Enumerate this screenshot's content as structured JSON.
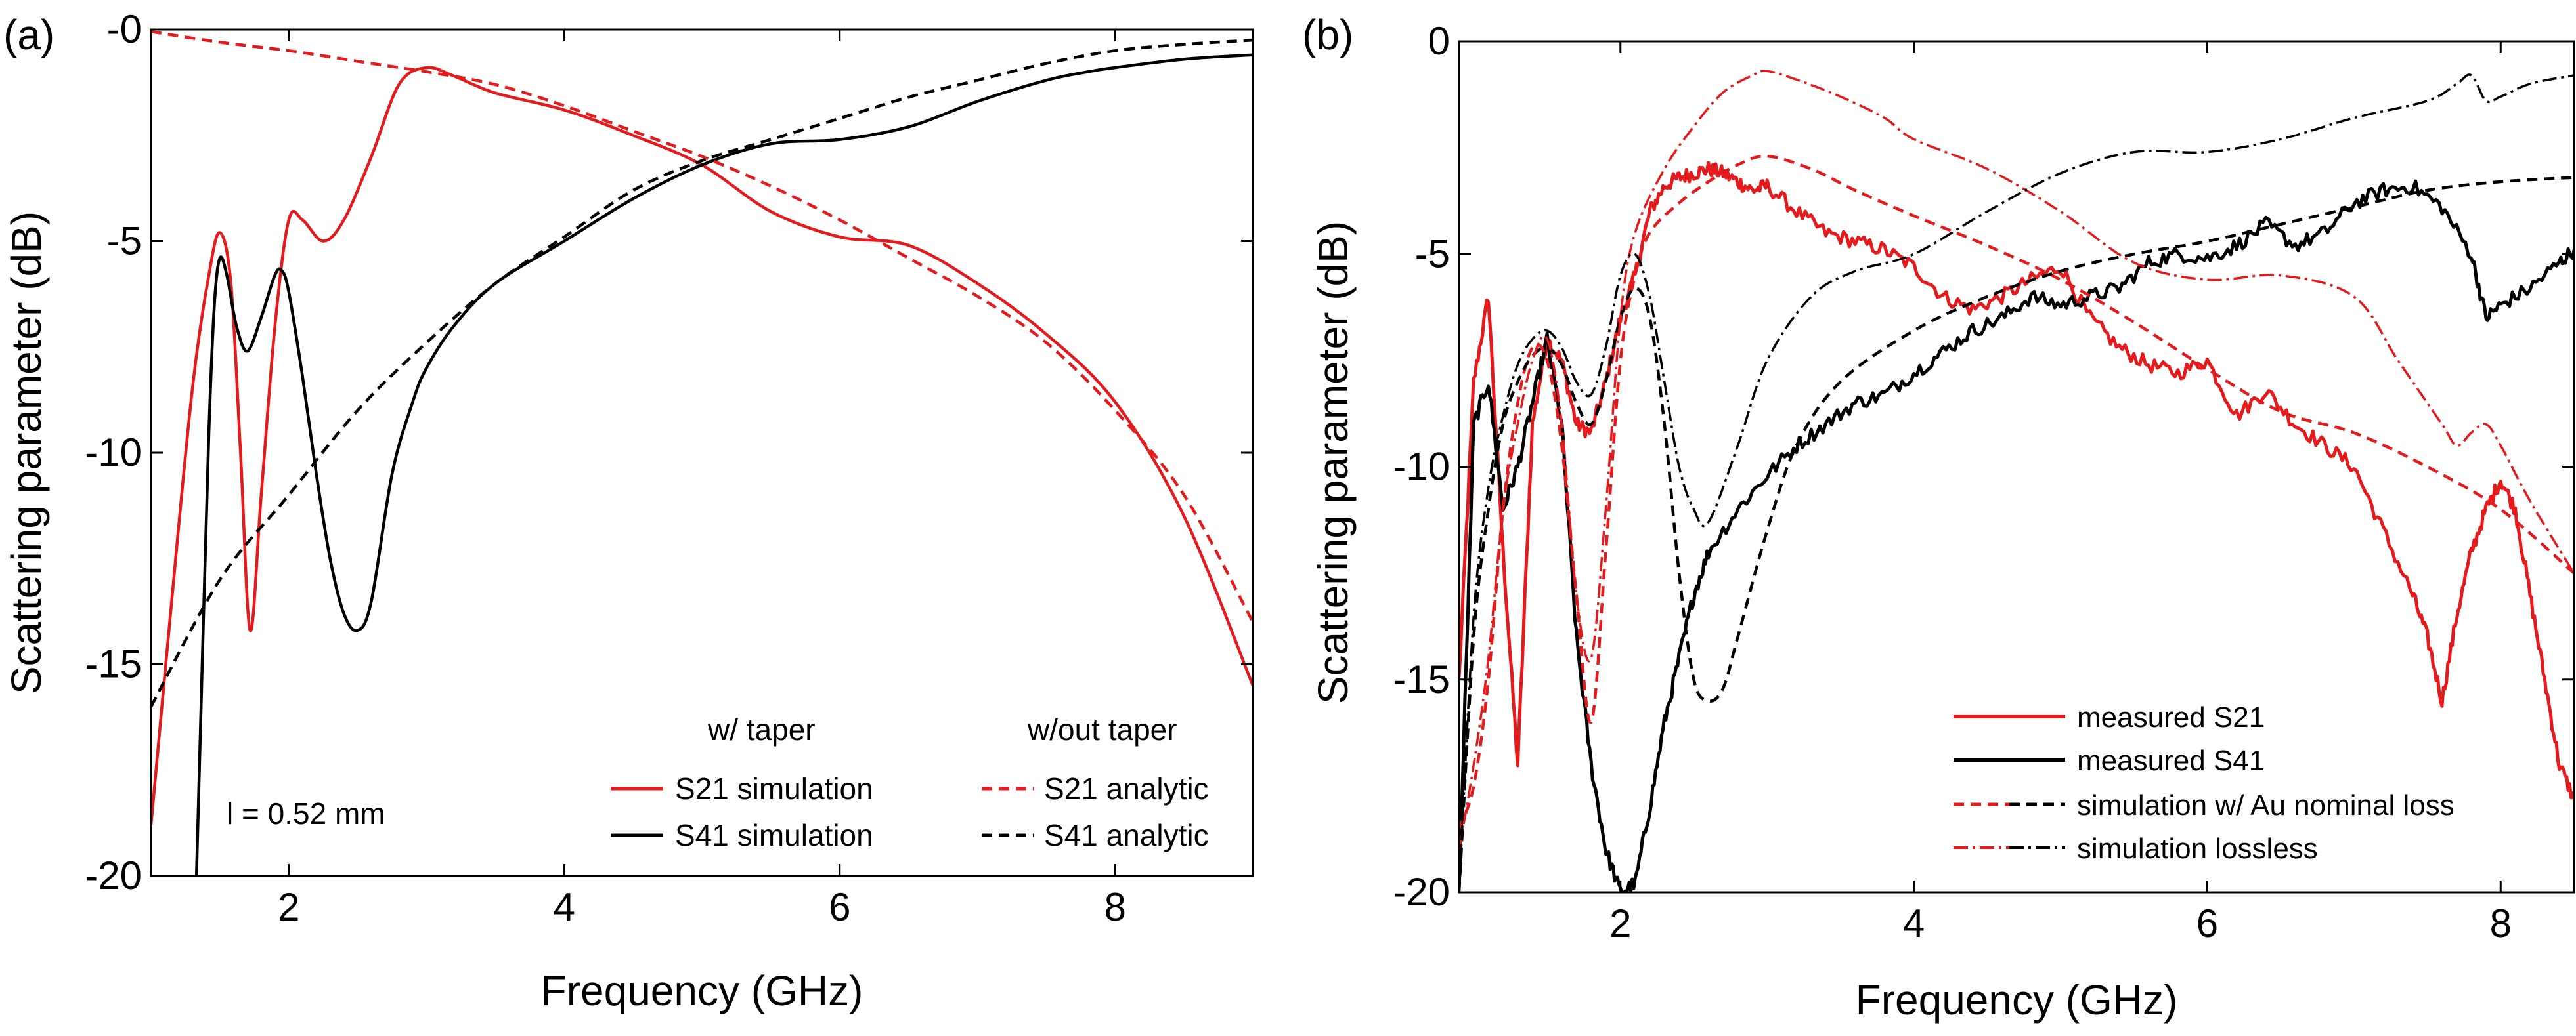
{
  "chart_data": [
    {
      "panel": "(a)",
      "type": "line",
      "xlabel": "Frequency (GHz)",
      "ylabel": "Scattering parameter (dB)",
      "xlim": [
        1,
        9
      ],
      "ylim": [
        -20,
        0
      ],
      "xticks": [
        2,
        4,
        6,
        8
      ],
      "yticks": [
        0,
        -5,
        -10,
        -15,
        -20
      ],
      "xtick_labels": [
        "2",
        "4",
        "6",
        "8"
      ],
      "ytick_labels": [
        "-0",
        "-5",
        "-10",
        "-15",
        "-20"
      ],
      "legend_headers": [
        "w/ taper",
        "w/out taper"
      ],
      "annotation": "l = 0.52 mm",
      "series": [
        {
          "name": "S21 simulation",
          "color": "#e41a1c",
          "style": "solid",
          "x": [
            1.0,
            1.15,
            1.3,
            1.42,
            1.5,
            1.58,
            1.65,
            1.72,
            1.8,
            1.9,
            2.0,
            2.1,
            2.25,
            2.4,
            2.6,
            2.8,
            3.0,
            3.2,
            3.5,
            4.0,
            4.5,
            5.0,
            5.5,
            6.0,
            6.5,
            7.0,
            7.5,
            8.0,
            8.5,
            9.0
          ],
          "y": [
            -18.8,
            -13.5,
            -8.5,
            -5.8,
            -4.8,
            -6.0,
            -10.0,
            -14.2,
            -11.0,
            -7.0,
            -4.5,
            -4.5,
            -5.0,
            -4.5,
            -3.0,
            -1.3,
            -0.9,
            -1.1,
            -1.5,
            -1.9,
            -2.5,
            -3.2,
            -4.3,
            -4.9,
            -5.1,
            -6.0,
            -7.2,
            -8.8,
            -11.5,
            -15.5
          ]
        },
        {
          "name": "S41 simulation",
          "color": "#000000",
          "style": "solid",
          "x": [
            1.33,
            1.38,
            1.42,
            1.46,
            1.5,
            1.55,
            1.62,
            1.7,
            1.8,
            1.9,
            1.95,
            2.0,
            2.1,
            2.2,
            2.3,
            2.4,
            2.5,
            2.6,
            2.75,
            2.9,
            3.0,
            3.2,
            3.5,
            4.0,
            4.5,
            5.0,
            5.5,
            6.0,
            6.5,
            7.0,
            7.5,
            7.8,
            8.0,
            8.5,
            9.0
          ],
          "y": [
            -20,
            -14,
            -9.5,
            -6.5,
            -5.4,
            -5.8,
            -7.0,
            -7.6,
            -6.8,
            -5.8,
            -5.7,
            -6.2,
            -8.2,
            -10.5,
            -12.5,
            -13.8,
            -14.2,
            -13.5,
            -10.5,
            -8.8,
            -8.0,
            -7.0,
            -6.0,
            -5.0,
            -4.0,
            -3.2,
            -2.7,
            -2.6,
            -2.3,
            -1.7,
            -1.2,
            -1.0,
            -0.9,
            -0.7,
            -0.6
          ]
        },
        {
          "name": "S21 analytic",
          "color": "#e41a1c",
          "style": "dashed",
          "x": [
            1.0,
            1.5,
            2.0,
            2.5,
            3.0,
            3.5,
            4.0,
            4.5,
            5.0,
            5.5,
            6.0,
            6.5,
            7.0,
            7.5,
            8.0,
            8.5,
            9.0
          ],
          "y": [
            -0.05,
            -0.3,
            -0.5,
            -0.75,
            -1.0,
            -1.3,
            -1.8,
            -2.4,
            -3.0,
            -3.7,
            -4.5,
            -5.4,
            -6.3,
            -7.4,
            -9.0,
            -11.0,
            -14.0
          ]
        },
        {
          "name": "S41 analytic",
          "color": "#000000",
          "style": "dashed",
          "x": [
            1.0,
            1.5,
            2.0,
            2.5,
            3.0,
            3.5,
            4.0,
            4.5,
            5.0,
            5.5,
            6.0,
            6.5,
            7.0,
            7.5,
            8.0,
            8.5,
            9.0
          ],
          "y": [
            -16.0,
            -13.0,
            -11.0,
            -9.0,
            -7.4,
            -6.0,
            -4.9,
            -3.8,
            -3.1,
            -2.6,
            -2.1,
            -1.6,
            -1.2,
            -0.8,
            -0.5,
            -0.35,
            -0.25
          ]
        }
      ]
    },
    {
      "panel": "(b)",
      "type": "line",
      "xlabel": "Frequency (GHz)",
      "ylabel": "Scattering parameter (dB)",
      "xlim": [
        0.9,
        8.5
      ],
      "ylim": [
        -20,
        0
      ],
      "xticks": [
        2,
        4,
        6,
        8
      ],
      "yticks": [
        0,
        -5,
        -10,
        -15,
        -20
      ],
      "xtick_labels": [
        "2",
        "4",
        "6",
        "8"
      ],
      "ytick_labels": [
        "0",
        "-5",
        "-10",
        "-15",
        "-20"
      ],
      "series": [
        {
          "name": "measured S21",
          "color": "#e41a1c",
          "style": "solid",
          "noisy": true,
          "x": [
            0.9,
            1.0,
            1.1,
            1.2,
            1.3,
            1.4,
            1.5,
            1.6,
            1.7,
            1.8,
            1.9,
            2.0,
            2.1,
            2.2,
            2.3,
            2.4,
            2.5,
            2.6,
            2.7,
            2.8,
            2.9,
            3.0,
            3.2,
            3.4,
            3.6,
            3.8,
            4.0,
            4.2,
            4.4,
            4.6,
            4.8,
            5.0,
            5.2,
            5.4,
            5.6,
            5.8,
            6.0,
            6.2,
            6.4,
            6.6,
            6.8,
            7.0,
            7.2,
            7.4,
            7.5,
            7.6,
            7.7,
            7.8,
            7.9,
            8.0,
            8.1,
            8.2,
            8.3,
            8.4,
            8.5
          ],
          "y": [
            -15.0,
            -8.0,
            -6.0,
            -12.0,
            -17.0,
            -9.0,
            -7.0,
            -7.5,
            -9.0,
            -9.2,
            -8.0,
            -6.5,
            -5.5,
            -4.0,
            -3.4,
            -3.2,
            -3.1,
            -3.0,
            -3.1,
            -3.3,
            -3.5,
            -3.4,
            -4.0,
            -4.5,
            -4.7,
            -4.9,
            -5.3,
            -6.0,
            -6.3,
            -6.0,
            -5.6,
            -5.3,
            -6.5,
            -7.2,
            -7.6,
            -7.8,
            -7.5,
            -8.8,
            -8.2,
            -9.0,
            -9.5,
            -10.0,
            -11.5,
            -13.0,
            -14.0,
            -15.5,
            -13.5,
            -12.0,
            -11.0,
            -10.3,
            -11.0,
            -13.0,
            -15.0,
            -17.0,
            -17.8
          ]
        },
        {
          "name": "measured S41",
          "color": "#000000",
          "style": "solid",
          "noisy": true,
          "x": [
            0.9,
            1.0,
            1.1,
            1.2,
            1.3,
            1.4,
            1.5,
            1.6,
            1.7,
            1.8,
            1.9,
            2.0,
            2.1,
            2.2,
            2.3,
            2.4,
            2.5,
            2.6,
            2.8,
            3.0,
            3.2,
            3.4,
            3.6,
            3.8,
            4.0,
            4.2,
            4.4,
            4.6,
            4.8,
            5.0,
            5.2,
            5.4,
            5.6,
            5.8,
            6.0,
            6.2,
            6.4,
            6.6,
            6.8,
            7.0,
            7.2,
            7.4,
            7.6,
            7.8,
            7.9,
            8.0,
            8.2,
            8.4,
            8.5
          ],
          "y": [
            -20.0,
            -9.0,
            -8.0,
            -11.0,
            -10.0,
            -8.5,
            -7.0,
            -9.0,
            -14.0,
            -17.0,
            -19.0,
            -20.0,
            -19.8,
            -18.0,
            -16.0,
            -14.5,
            -13.0,
            -12.0,
            -11.0,
            -10.2,
            -9.5,
            -9.0,
            -8.5,
            -8.3,
            -7.8,
            -7.3,
            -6.8,
            -6.5,
            -6.0,
            -6.2,
            -6.0,
            -5.8,
            -5.2,
            -5.0,
            -5.1,
            -4.8,
            -4.3,
            -4.8,
            -4.5,
            -3.8,
            -3.5,
            -3.4,
            -3.9,
            -5.0,
            -6.5,
            -6.2,
            -5.8,
            -5.2,
            -4.9
          ]
        },
        {
          "name": "simulation w/ Au nominal loss (S21)",
          "color": "#e41a1c",
          "style": "dashed",
          "x": [
            0.9,
            1.0,
            1.1,
            1.2,
            1.3,
            1.4,
            1.5,
            1.6,
            1.7,
            1.8,
            1.9,
            2.0,
            2.1,
            2.2,
            2.4,
            2.6,
            2.8,
            3.0,
            3.3,
            3.6,
            4.0,
            4.5,
            5.0,
            5.5,
            6.0,
            6.5,
            7.0,
            7.5,
            8.0,
            8.5
          ],
          "y": [
            -18.5,
            -17.5,
            -15.0,
            -11.0,
            -8.5,
            -7.2,
            -7.5,
            -9.5,
            -13.0,
            -16.0,
            -12.0,
            -7.5,
            -5.5,
            -4.5,
            -3.8,
            -3.3,
            -2.9,
            -2.7,
            -3.0,
            -3.5,
            -4.1,
            -4.8,
            -5.6,
            -6.6,
            -7.7,
            -8.7,
            -9.2,
            -10.0,
            -11.0,
            -12.5
          ]
        },
        {
          "name": "simulation w/ Au nominal loss (S41)",
          "color": "#000000",
          "style": "dashed",
          "x": [
            0.9,
            1.0,
            1.1,
            1.2,
            1.3,
            1.4,
            1.5,
            1.6,
            1.7,
            1.8,
            1.9,
            2.0,
            2.1,
            2.2,
            2.3,
            2.4,
            2.5,
            2.6,
            2.7,
            2.8,
            3.0,
            3.2,
            3.5,
            4.0,
            4.5,
            5.0,
            5.5,
            6.0,
            6.5,
            7.0,
            7.5,
            8.0,
            8.5
          ],
          "y": [
            -20.0,
            -14.0,
            -11.0,
            -9.0,
            -8.0,
            -7.4,
            -7.2,
            -7.6,
            -8.5,
            -9.0,
            -8.0,
            -6.5,
            -5.8,
            -6.5,
            -9.0,
            -12.5,
            -15.0,
            -15.5,
            -15.2,
            -14.0,
            -11.5,
            -9.5,
            -8.0,
            -6.8,
            -6.0,
            -5.4,
            -5.0,
            -4.7,
            -4.3,
            -3.9,
            -3.5,
            -3.3,
            -3.2
          ]
        },
        {
          "name": "simulation lossless (S21)",
          "color": "#e41a1c",
          "style": "dashdot",
          "x": [
            0.9,
            1.0,
            1.1,
            1.2,
            1.3,
            1.4,
            1.5,
            1.6,
            1.7,
            1.8,
            1.9,
            2.0,
            2.1,
            2.3,
            2.5,
            2.7,
            2.9,
            3.0,
            3.2,
            3.5,
            3.8,
            4.0,
            4.5,
            5.0,
            5.5,
            6.0,
            6.5,
            7.0,
            7.3,
            7.6,
            7.7,
            7.8,
            7.9,
            8.0,
            8.2,
            8.5
          ],
          "y": [
            -19.0,
            -17.0,
            -14.5,
            -11.0,
            -9.0,
            -7.5,
            -7.0,
            -9.0,
            -13.0,
            -14.5,
            -11.0,
            -6.5,
            -4.5,
            -3.0,
            -2.0,
            -1.2,
            -0.8,
            -0.7,
            -0.9,
            -1.3,
            -1.8,
            -2.3,
            -3.0,
            -4.0,
            -5.2,
            -5.6,
            -5.5,
            -6.0,
            -7.5,
            -9.0,
            -9.5,
            -9.2,
            -9.0,
            -9.5,
            -10.8,
            -12.5
          ]
        },
        {
          "name": "simulation lossless (S41)",
          "color": "#000000",
          "style": "dashdot",
          "x": [
            0.9,
            1.0,
            1.1,
            1.2,
            1.3,
            1.4,
            1.5,
            1.6,
            1.7,
            1.8,
            1.9,
            2.0,
            2.1,
            2.2,
            2.3,
            2.4,
            2.5,
            2.6,
            2.8,
            3.0,
            3.3,
            3.6,
            4.0,
            4.5,
            5.0,
            5.5,
            6.0,
            6.5,
            7.0,
            7.5,
            7.7,
            7.8,
            7.9,
            8.0,
            8.2,
            8.5
          ],
          "y": [
            -20.0,
            -13.5,
            -10.5,
            -8.8,
            -7.6,
            -7.0,
            -6.8,
            -7.2,
            -8.0,
            -8.3,
            -7.2,
            -5.5,
            -5.0,
            -6.0,
            -8.0,
            -10.0,
            -11.0,
            -11.3,
            -9.5,
            -7.5,
            -6.0,
            -5.4,
            -5.0,
            -4.0,
            -3.1,
            -2.6,
            -2.6,
            -2.3,
            -1.8,
            -1.4,
            -1.0,
            -0.8,
            -1.4,
            -1.3,
            -1.0,
            -0.8
          ]
        }
      ],
      "legend_entries": [
        {
          "label": "measured S21",
          "colors": [
            "#e41a1c"
          ],
          "style": "solid"
        },
        {
          "label": "measured S41",
          "colors": [
            "#000000"
          ],
          "style": "solid"
        },
        {
          "label": "simulation w/ Au nominal loss",
          "colors": [
            "#e41a1c",
            "#000000"
          ],
          "style": "dashed"
        },
        {
          "label": "simulation lossless",
          "colors": [
            "#e41a1c",
            "#000000"
          ],
          "style": "dashdot"
        }
      ]
    }
  ]
}
